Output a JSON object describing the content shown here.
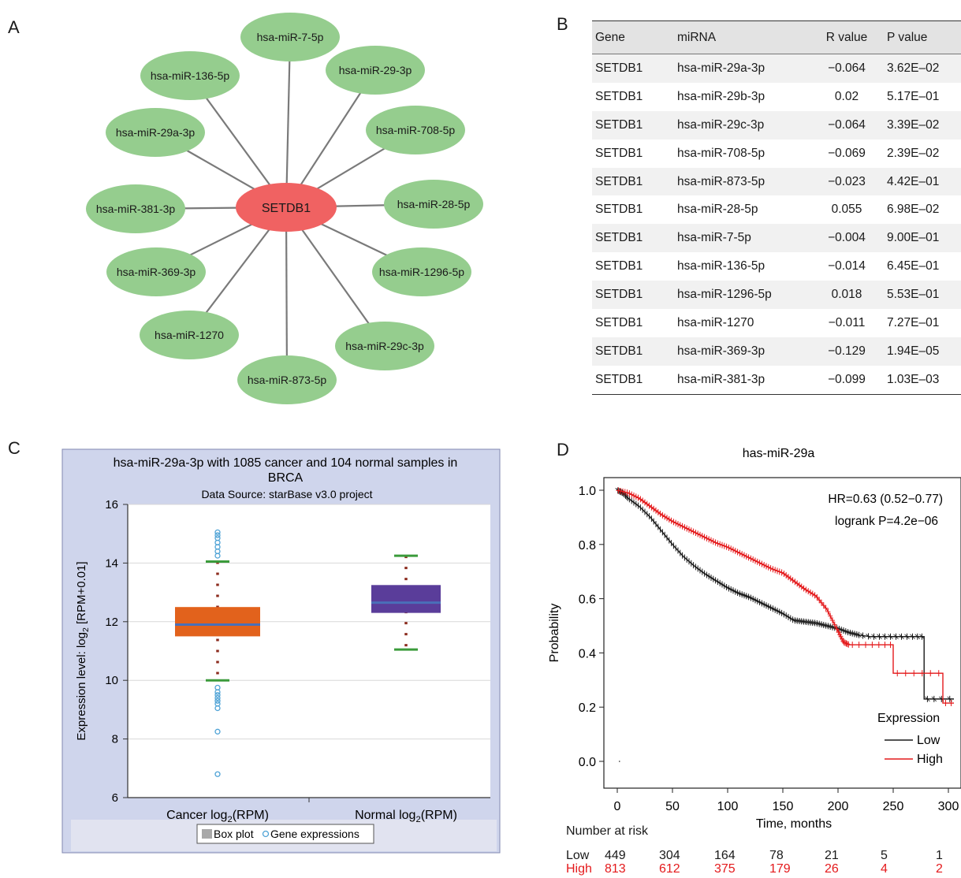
{
  "panels": {
    "a": "A",
    "b": "B",
    "c": "C",
    "d": "D"
  },
  "network": {
    "center": "SETDB1",
    "center_color": "#f06262",
    "node_color": "#95cd8e",
    "edge_color": "#7a7a7a",
    "nodes": [
      "hsa-miR-7-5p",
      "hsa-miR-29-3p",
      "hsa-miR-708-5p",
      "hsa-miR-28-5p",
      "hsa-miR-1296-5p",
      "hsa-miR-29c-3p",
      "hsa-miR-873-5p",
      "hsa-miR-1270",
      "hsa-miR-369-3p",
      "hsa-miR-381-3p",
      "hsa-miR-29a-3p",
      "hsa-miR-136-5p"
    ]
  },
  "table": {
    "headers": [
      "Gene",
      "miRNA",
      "R value",
      "P value"
    ],
    "rows": [
      [
        "SETDB1",
        "hsa-miR-29a-3p",
        "−0.064",
        "3.62E–02"
      ],
      [
        "SETDB1",
        "hsa-miR-29b-3p",
        "0.02",
        "5.17E–01"
      ],
      [
        "SETDB1",
        "hsa-miR-29c-3p",
        "−0.064",
        "3.39E–02"
      ],
      [
        "SETDB1",
        "hsa-miR-708-5p",
        "−0.069",
        "2.39E–02"
      ],
      [
        "SETDB1",
        "hsa-miR-873-5p",
        "−0.023",
        "4.42E–01"
      ],
      [
        "SETDB1",
        "hsa-miR-28-5p",
        "0.055",
        "6.98E–02"
      ],
      [
        "SETDB1",
        "hsa-miR-7-5p",
        "−0.004",
        "9.00E–01"
      ],
      [
        "SETDB1",
        "hsa-miR-136-5p",
        "−0.014",
        "6.45E–01"
      ],
      [
        "SETDB1",
        "hsa-miR-1296-5p",
        "0.018",
        "5.53E–01"
      ],
      [
        "SETDB1",
        "hsa-miR-1270",
        "−0.011",
        "7.27E–01"
      ],
      [
        "SETDB1",
        "hsa-miR-369-3p",
        "−0.129",
        "1.94E–05"
      ],
      [
        "SETDB1",
        "hsa-miR-381-3p",
        "−0.099",
        "1.03E–03"
      ]
    ]
  },
  "chart_data": [
    {
      "type": "box",
      "title": "hsa-miR-29a-3p with 1085 cancer and 104 normal samples in BRCA",
      "subtitle": "Data Source: starBase v3.0 project",
      "ylabel_prefix": "Expression level: log",
      "ylabel_sub": "2",
      "ylabel_suffix": " [RPM+0.01]",
      "ylim": [
        6,
        16
      ],
      "yticks": [
        "6",
        "8",
        "10",
        "12",
        "14",
        "16"
      ],
      "groups": [
        {
          "label_prefix": "Cancer log",
          "label_sub": "2",
          "label_suffix": "(RPM)",
          "color": "#e2621c",
          "whisker_low": 10,
          "q1": 11.5,
          "median": 11.9,
          "q3": 12.5,
          "whisker_high": 14.05,
          "outliers": [
            15.05,
            14.95,
            14.85,
            14.7,
            14.55,
            14.4,
            14.25,
            9.75,
            9.6,
            9.5,
            9.4,
            9.3,
            9.2,
            9.05,
            8.25,
            6.8
          ]
        },
        {
          "label_prefix": "Normal log",
          "label_sub": "2",
          "label_suffix": "(RPM)",
          "color": "#5a3d9a",
          "whisker_low": 11.05,
          "q1": 12.3,
          "median": 12.65,
          "q3": 13.25,
          "whisker_high": 14.25,
          "outliers": []
        }
      ],
      "legend": {
        "box": "Box plot",
        "points": "Gene expressions",
        "position": "bottom"
      }
    },
    {
      "type": "line",
      "title": "has-miR-29a",
      "xlabel": "Time, months",
      "ylabel": "Probability",
      "xlim": [
        0,
        310
      ],
      "ylim": [
        0,
        1.0
      ],
      "xticks": [
        "0",
        "50",
        "100",
        "150",
        "200",
        "250",
        "300"
      ],
      "yticks": [
        "0.0",
        "0.2",
        "0.4",
        "0.6",
        "0.8",
        "1.0"
      ],
      "annotation": [
        "HR=0.63 (0.52−0.77)",
        "logrank P=4.2e−06"
      ],
      "legend": {
        "title": "Expression",
        "position": "bottom-right"
      },
      "series": [
        {
          "name": "Low",
          "color": "#1a1a1a",
          "x": [
            0,
            5,
            10,
            20,
            30,
            40,
            50,
            60,
            70,
            80,
            90,
            100,
            110,
            120,
            130,
            140,
            150,
            160,
            170,
            180,
            190,
            200,
            210,
            220,
            230,
            240,
            250,
            260,
            270,
            278,
            278,
            290,
            305
          ],
          "y": [
            1.0,
            0.99,
            0.97,
            0.94,
            0.9,
            0.85,
            0.8,
            0.755,
            0.72,
            0.69,
            0.665,
            0.64,
            0.62,
            0.605,
            0.585,
            0.565,
            0.545,
            0.52,
            0.515,
            0.51,
            0.5,
            0.49,
            0.475,
            0.465,
            0.46,
            0.46,
            0.46,
            0.46,
            0.46,
            0.46,
            0.23,
            0.23,
            0.23
          ]
        },
        {
          "name": "High",
          "color": "#e41a1c",
          "x": [
            0,
            10,
            20,
            30,
            40,
            50,
            60,
            70,
            80,
            90,
            100,
            110,
            120,
            130,
            140,
            150,
            160,
            170,
            180,
            190,
            200,
            205,
            210,
            240,
            250,
            250,
            265,
            280,
            295,
            295,
            305
          ],
          "y": [
            1.0,
            0.99,
            0.97,
            0.94,
            0.91,
            0.885,
            0.865,
            0.845,
            0.825,
            0.805,
            0.79,
            0.77,
            0.75,
            0.73,
            0.71,
            0.695,
            0.665,
            0.635,
            0.61,
            0.56,
            0.48,
            0.44,
            0.43,
            0.43,
            0.43,
            0.325,
            0.325,
            0.325,
            0.325,
            0.215,
            0.215
          ]
        }
      ],
      "risk_table": {
        "heading": "Number at risk",
        "rows": [
          {
            "label": "Low",
            "color": "#1a1a1a",
            "values": [
              "449",
              "304",
              "164",
              "78",
              "21",
              "5",
              "1"
            ]
          },
          {
            "label": "High",
            "color": "#e41a1c",
            "values": [
              "813",
              "612",
              "375",
              "179",
              "26",
              "4",
              "2"
            ]
          }
        ]
      }
    }
  ]
}
